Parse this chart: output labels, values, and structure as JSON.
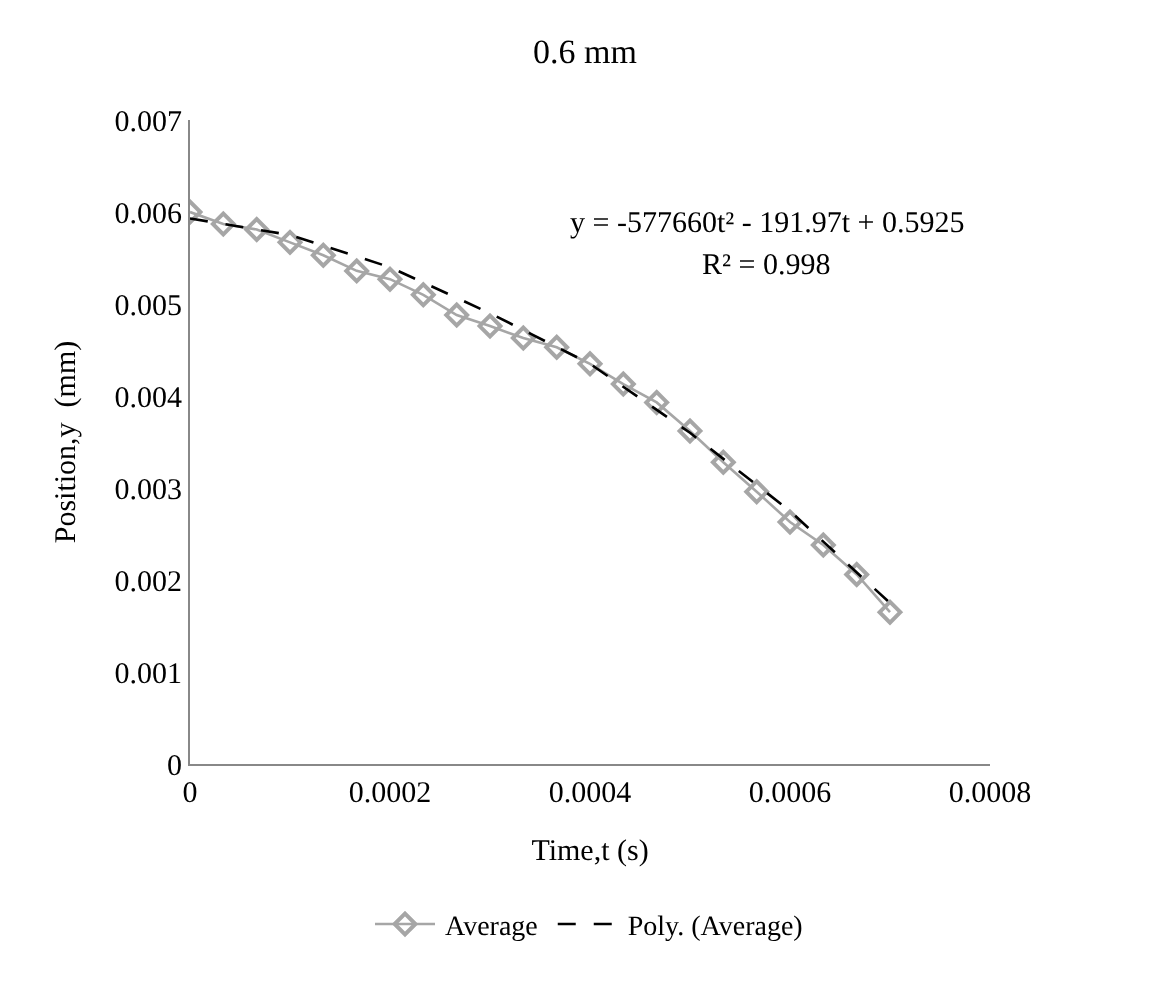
{
  "chart_data": {
    "type": "line",
    "title": "0.6 mm",
    "xlabel": "Time,t (s)",
    "ylabel": "Position,y  (mm)",
    "x": [
      0,
      3.33e-05,
      6.67e-05,
      0.0001,
      0.0001333,
      0.0001667,
      0.0002,
      0.0002333,
      0.0002667,
      0.0003,
      0.0003333,
      0.0003667,
      0.0004,
      0.0004333,
      0.0004667,
      0.0005,
      0.0005333,
      0.0005667,
      0.0006,
      0.0006333,
      0.0006667,
      0.0007
    ],
    "series": [
      {
        "name": "Average",
        "color": "#a6a6a6",
        "marker": "diamond",
        "line_style": "solid",
        "values": [
          0.006,
          0.00587,
          0.00581,
          0.00567,
          0.00553,
          0.00536,
          0.00527,
          0.0051,
          0.00488,
          0.00476,
          0.00463,
          0.00453,
          0.00435,
          0.00413,
          0.00393,
          0.00362,
          0.00328,
          0.00296,
          0.00263,
          0.00238,
          0.00206,
          0.00165
        ]
      },
      {
        "name": "Poly. (Average)",
        "color": "#000000",
        "marker": "none",
        "line_style": "dashed",
        "x": [
          0,
          0.0001,
          0.0002,
          0.0003,
          0.0004,
          0.0005,
          0.0006,
          0.0007
        ],
        "values": [
          0.00593,
          0.00575,
          0.0054,
          0.0049,
          0.00435,
          0.0036,
          0.00275,
          0.00175
        ]
      }
    ],
    "xlim": [
      0,
      0.0008
    ],
    "xticks": [
      0,
      0.0002,
      0.0004,
      0.0006,
      0.0008
    ],
    "ylim": [
      0,
      0.007
    ],
    "yticks": [
      0,
      0.001,
      0.002,
      0.003,
      0.004,
      0.005,
      0.006,
      0.007
    ],
    "legend": "bottom",
    "annotations": [
      "y = -577660t² - 191.97t + 0.5925",
      "R² = 0.998"
    ]
  }
}
